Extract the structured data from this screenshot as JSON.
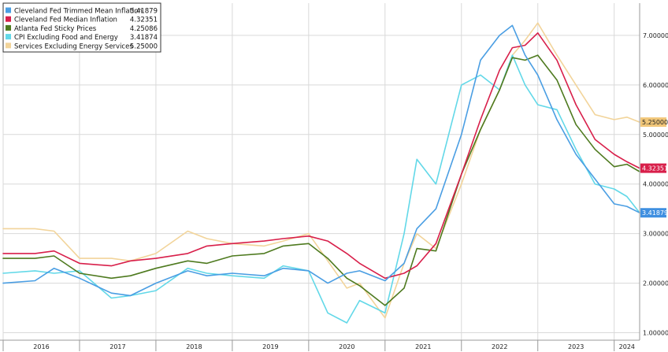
{
  "chart_data": {
    "type": "line",
    "title": "",
    "xlabel": "",
    "ylabel": "",
    "xlim": [
      "2016-01",
      "2024-05"
    ],
    "ylim": [
      0.85,
      7.65
    ],
    "grid": true,
    "legend_position": "top-left",
    "x_tick_labels": [
      "2016",
      "2017",
      "2018",
      "2019",
      "2020",
      "2021",
      "2022",
      "2023",
      "2024"
    ],
    "y_tick_labels": [
      "1.00000",
      "2.00000",
      "3.00000",
      "4.00000",
      "5.00000",
      "6.00000",
      "7.00000"
    ],
    "y_tick_values": [
      1,
      2,
      3,
      4,
      5,
      6,
      7
    ],
    "series": [
      {
        "name": "Cleveland Fed Trimmed Mean Inflation",
        "legend_value": "3.41879",
        "end_label": "3.41879",
        "color": "#4a9ee3",
        "points": [
          [
            "2016-01",
            2.0
          ],
          [
            "2016-06",
            2.05
          ],
          [
            "2016-09",
            2.3
          ],
          [
            "2017-01",
            2.1
          ],
          [
            "2017-06",
            1.8
          ],
          [
            "2017-09",
            1.75
          ],
          [
            "2018-01",
            2.0
          ],
          [
            "2018-06",
            2.25
          ],
          [
            "2018-09",
            2.15
          ],
          [
            "2019-01",
            2.2
          ],
          [
            "2019-06",
            2.15
          ],
          [
            "2019-09",
            2.3
          ],
          [
            "2020-01",
            2.25
          ],
          [
            "2020-04",
            2.0
          ],
          [
            "2020-07",
            2.2
          ],
          [
            "2020-09",
            2.25
          ],
          [
            "2021-01",
            2.05
          ],
          [
            "2021-04",
            2.4
          ],
          [
            "2021-06",
            3.1
          ],
          [
            "2021-09",
            3.5
          ],
          [
            "2022-01",
            5.0
          ],
          [
            "2022-04",
            6.5
          ],
          [
            "2022-07",
            7.0
          ],
          [
            "2022-09",
            7.2
          ],
          [
            "2022-11",
            6.6
          ],
          [
            "2023-01",
            6.2
          ],
          [
            "2023-04",
            5.3
          ],
          [
            "2023-07",
            4.6
          ],
          [
            "2023-10",
            4.1
          ],
          [
            "2024-01",
            3.6
          ],
          [
            "2024-03",
            3.55
          ],
          [
            "2024-05",
            3.42
          ]
        ]
      },
      {
        "name": "Cleveland Fed Median Inflation",
        "legend_value": "4.32351",
        "end_label": "4.32351",
        "color": "#d81f4a",
        "points": [
          [
            "2016-01",
            2.6
          ],
          [
            "2016-06",
            2.6
          ],
          [
            "2016-09",
            2.65
          ],
          [
            "2017-01",
            2.4
          ],
          [
            "2017-06",
            2.35
          ],
          [
            "2017-09",
            2.45
          ],
          [
            "2018-01",
            2.5
          ],
          [
            "2018-06",
            2.6
          ],
          [
            "2018-09",
            2.75
          ],
          [
            "2019-01",
            2.8
          ],
          [
            "2019-06",
            2.85
          ],
          [
            "2019-09",
            2.9
          ],
          [
            "2020-01",
            2.95
          ],
          [
            "2020-04",
            2.85
          ],
          [
            "2020-07",
            2.6
          ],
          [
            "2020-09",
            2.4
          ],
          [
            "2021-01",
            2.1
          ],
          [
            "2021-04",
            2.2
          ],
          [
            "2021-06",
            2.35
          ],
          [
            "2021-09",
            2.8
          ],
          [
            "2022-01",
            4.2
          ],
          [
            "2022-04",
            5.3
          ],
          [
            "2022-07",
            6.3
          ],
          [
            "2022-09",
            6.75
          ],
          [
            "2022-11",
            6.8
          ],
          [
            "2023-01",
            7.05
          ],
          [
            "2023-04",
            6.5
          ],
          [
            "2023-07",
            5.6
          ],
          [
            "2023-10",
            4.9
          ],
          [
            "2024-01",
            4.6
          ],
          [
            "2024-03",
            4.45
          ],
          [
            "2024-05",
            4.32
          ]
        ]
      },
      {
        "name": "Atlanta Fed Sticky Prices",
        "legend_value": "4.25086",
        "end_label": "",
        "color": "#4e7a1f",
        "points": [
          [
            "2016-01",
            2.5
          ],
          [
            "2016-06",
            2.5
          ],
          [
            "2016-09",
            2.55
          ],
          [
            "2017-01",
            2.2
          ],
          [
            "2017-06",
            2.1
          ],
          [
            "2017-09",
            2.15
          ],
          [
            "2018-01",
            2.3
          ],
          [
            "2018-06",
            2.45
          ],
          [
            "2018-09",
            2.4
          ],
          [
            "2019-01",
            2.55
          ],
          [
            "2019-06",
            2.6
          ],
          [
            "2019-09",
            2.75
          ],
          [
            "2020-01",
            2.8
          ],
          [
            "2020-04",
            2.5
          ],
          [
            "2020-07",
            2.1
          ],
          [
            "2020-09",
            1.95
          ],
          [
            "2021-01",
            1.55
          ],
          [
            "2021-04",
            1.9
          ],
          [
            "2021-06",
            2.7
          ],
          [
            "2021-09",
            2.65
          ],
          [
            "2022-01",
            4.2
          ],
          [
            "2022-04",
            5.1
          ],
          [
            "2022-07",
            5.9
          ],
          [
            "2022-09",
            6.55
          ],
          [
            "2022-11",
            6.5
          ],
          [
            "2023-01",
            6.6
          ],
          [
            "2023-04",
            6.1
          ],
          [
            "2023-07",
            5.2
          ],
          [
            "2023-10",
            4.7
          ],
          [
            "2024-01",
            4.35
          ],
          [
            "2024-03",
            4.4
          ],
          [
            "2024-05",
            4.25
          ]
        ]
      },
      {
        "name": "CPI Excluding Food and Energy",
        "legend_value": "3.41874",
        "end_label": "",
        "color": "#62d8e8",
        "points": [
          [
            "2016-01",
            2.2
          ],
          [
            "2016-06",
            2.25
          ],
          [
            "2016-09",
            2.2
          ],
          [
            "2017-01",
            2.25
          ],
          [
            "2017-06",
            1.7
          ],
          [
            "2017-09",
            1.75
          ],
          [
            "2018-01",
            1.85
          ],
          [
            "2018-06",
            2.3
          ],
          [
            "2018-09",
            2.2
          ],
          [
            "2019-01",
            2.15
          ],
          [
            "2019-06",
            2.1
          ],
          [
            "2019-09",
            2.35
          ],
          [
            "2020-01",
            2.25
          ],
          [
            "2020-04",
            1.4
          ],
          [
            "2020-07",
            1.2
          ],
          [
            "2020-09",
            1.65
          ],
          [
            "2021-01",
            1.4
          ],
          [
            "2021-04",
            3.0
          ],
          [
            "2021-06",
            4.5
          ],
          [
            "2021-09",
            4.0
          ],
          [
            "2022-01",
            6.0
          ],
          [
            "2022-04",
            6.2
          ],
          [
            "2022-07",
            5.9
          ],
          [
            "2022-09",
            6.6
          ],
          [
            "2022-11",
            6.0
          ],
          [
            "2023-01",
            5.6
          ],
          [
            "2023-04",
            5.5
          ],
          [
            "2023-07",
            4.7
          ],
          [
            "2023-10",
            4.0
          ],
          [
            "2024-01",
            3.9
          ],
          [
            "2024-03",
            3.75
          ],
          [
            "2024-05",
            3.42
          ]
        ]
      },
      {
        "name": "Services Excluding Energy Services",
        "legend_value": "5.25000",
        "end_label": "5.25000",
        "color": "#f2d49a",
        "points": [
          [
            "2016-01",
            3.1
          ],
          [
            "2016-06",
            3.1
          ],
          [
            "2016-09",
            3.05
          ],
          [
            "2017-01",
            2.5
          ],
          [
            "2017-06",
            2.5
          ],
          [
            "2017-09",
            2.45
          ],
          [
            "2018-01",
            2.6
          ],
          [
            "2018-06",
            3.05
          ],
          [
            "2018-09",
            2.9
          ],
          [
            "2019-01",
            2.8
          ],
          [
            "2019-06",
            2.75
          ],
          [
            "2019-09",
            2.85
          ],
          [
            "2020-01",
            3.0
          ],
          [
            "2020-04",
            2.45
          ],
          [
            "2020-07",
            1.9
          ],
          [
            "2020-09",
            2.0
          ],
          [
            "2021-01",
            1.3
          ],
          [
            "2021-04",
            2.4
          ],
          [
            "2021-06",
            3.0
          ],
          [
            "2021-09",
            2.7
          ],
          [
            "2022-01",
            4.0
          ],
          [
            "2022-04",
            5.1
          ],
          [
            "2022-07",
            5.9
          ],
          [
            "2022-09",
            6.6
          ],
          [
            "2022-11",
            6.9
          ],
          [
            "2023-01",
            7.25
          ],
          [
            "2023-04",
            6.6
          ],
          [
            "2023-07",
            6.0
          ],
          [
            "2023-10",
            5.4
          ],
          [
            "2024-01",
            5.3
          ],
          [
            "2024-03",
            5.35
          ],
          [
            "2024-05",
            5.25
          ]
        ]
      }
    ],
    "end_label_colors": {
      "3.41879": {
        "bg": "#3f8fe0",
        "fg": "#ffffff"
      },
      "4.32351": {
        "bg": "#d81f4a",
        "fg": "#ffffff"
      },
      "5.25000": {
        "bg": "#f1c77a",
        "fg": "#222222"
      }
    }
  }
}
